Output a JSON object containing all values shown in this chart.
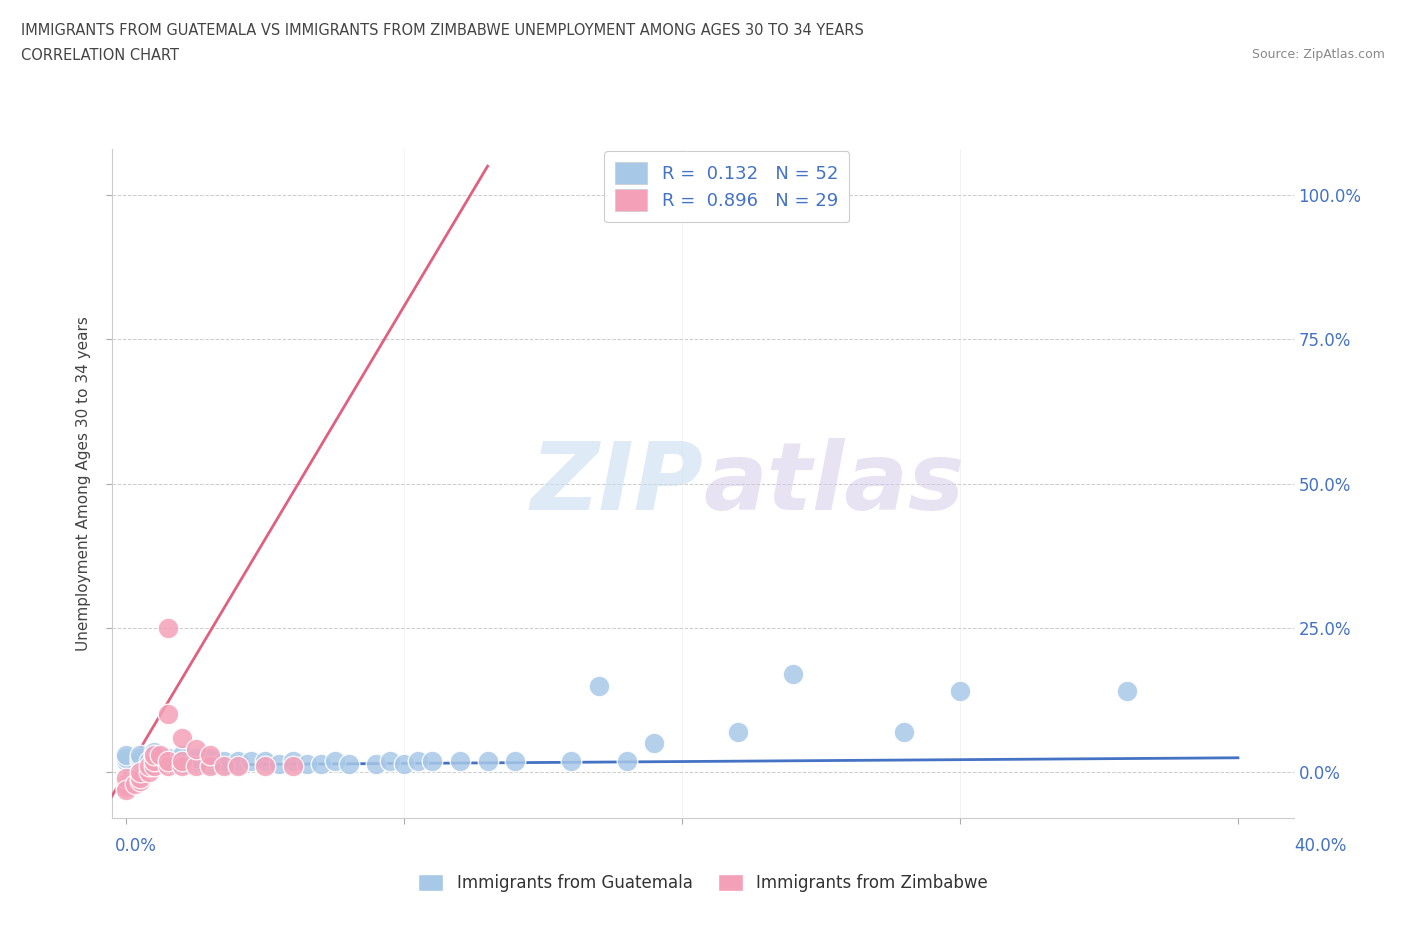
{
  "title_line1": "IMMIGRANTS FROM GUATEMALA VS IMMIGRANTS FROM ZIMBABWE UNEMPLOYMENT AMONG AGES 30 TO 34 YEARS",
  "title_line2": "CORRELATION CHART",
  "source_text": "Source: ZipAtlas.com",
  "ylabel": "Unemployment Among Ages 30 to 34 years",
  "watermark_zip": "ZIP",
  "watermark_atlas": "atlas",
  "legend_r1": "R =  0.132",
  "legend_n1": "N = 52",
  "legend_r2": "R =  0.896",
  "legend_n2": "N = 29",
  "color_guatemala": "#a8c8e8",
  "color_zimbabwe": "#f4a0b8",
  "color_line_guatemala": "#4472c4",
  "color_line_zimbabwe": "#e06080",
  "color_axis_text": "#4472c4",
  "xlim": [
    -0.005,
    0.42
  ],
  "ylim": [
    -0.08,
    1.08
  ],
  "ytick_vals": [
    0.0,
    0.25,
    0.5,
    0.75,
    1.0
  ],
  "ytick_labels_right": [
    "0.0%",
    "25.0%",
    "50.0%",
    "75.0%",
    "100.0%"
  ],
  "xtick_label_left": "0.0%",
  "xtick_label_right": "40.0%",
  "guatemala_x": [
    0.0,
    0.0,
    0.0,
    0.005,
    0.005,
    0.005,
    0.008,
    0.01,
    0.01,
    0.01,
    0.01,
    0.01,
    0.015,
    0.015,
    0.02,
    0.02,
    0.02,
    0.02,
    0.025,
    0.025,
    0.03,
    0.03,
    0.03,
    0.035,
    0.035,
    0.04,
    0.04,
    0.045,
    0.05,
    0.055,
    0.06,
    0.065,
    0.07,
    0.075,
    0.08,
    0.09,
    0.095,
    0.1,
    0.105,
    0.11,
    0.12,
    0.13,
    0.14,
    0.16,
    0.17,
    0.18,
    0.19,
    0.22,
    0.24,
    0.28,
    0.3,
    0.36
  ],
  "guatemala_y": [
    0.02,
    0.025,
    0.03,
    0.02,
    0.025,
    0.03,
    0.02,
    0.015,
    0.02,
    0.025,
    0.03,
    0.035,
    0.02,
    0.025,
    0.015,
    0.02,
    0.025,
    0.03,
    0.02,
    0.025,
    0.015,
    0.02,
    0.025,
    0.015,
    0.02,
    0.015,
    0.02,
    0.02,
    0.02,
    0.015,
    0.02,
    0.015,
    0.015,
    0.02,
    0.015,
    0.015,
    0.02,
    0.015,
    0.02,
    0.02,
    0.02,
    0.02,
    0.02,
    0.02,
    0.15,
    0.02,
    0.05,
    0.07,
    0.17,
    0.07,
    0.14,
    0.14
  ],
  "zimbabwe_x": [
    0.0,
    0.0,
    0.0,
    0.0,
    0.003,
    0.005,
    0.005,
    0.005,
    0.008,
    0.008,
    0.01,
    0.01,
    0.01,
    0.012,
    0.015,
    0.015,
    0.015,
    0.015,
    0.02,
    0.02,
    0.02,
    0.025,
    0.025,
    0.03,
    0.03,
    0.035,
    0.04,
    0.05,
    0.06
  ],
  "zimbabwe_y": [
    -0.02,
    -0.025,
    -0.01,
    -0.03,
    -0.02,
    -0.015,
    -0.01,
    0.0,
    0.0,
    0.01,
    0.01,
    0.02,
    0.03,
    0.03,
    0.01,
    0.02,
    0.1,
    0.25,
    0.01,
    0.02,
    0.06,
    0.01,
    0.04,
    0.01,
    0.03,
    0.01,
    0.01,
    0.01,
    0.01
  ],
  "background_color": "#ffffff",
  "grid_color": "#cccccc",
  "line_guatemala": [
    [
      0.0,
      0.4
    ],
    [
      0.012,
      0.025
    ]
  ],
  "line_zimbabwe": [
    [
      -0.01,
      0.13
    ],
    [
      -0.08,
      1.05
    ]
  ]
}
